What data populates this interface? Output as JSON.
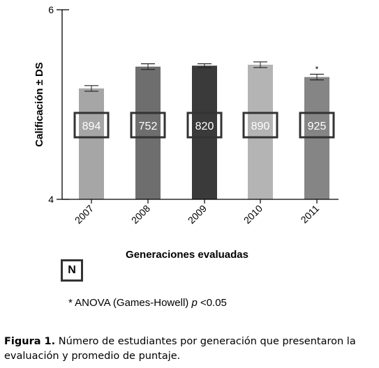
{
  "chart_data": {
    "type": "bar",
    "categories": [
      "2007",
      "2008",
      "2009",
      "2010",
      "2011"
    ],
    "values": [
      5.17,
      5.4,
      5.41,
      5.42,
      5.29
    ],
    "errors": [
      0.03,
      0.03,
      0.02,
      0.03,
      0.03
    ],
    "counts": [
      "894",
      "752",
      "820",
      "890",
      "925"
    ],
    "significance_marks": [
      "",
      "",
      "",
      "",
      "*"
    ],
    "bar_colors": [
      "#a6a6a6",
      "#6e6e6e",
      "#3a3a3a",
      "#b4b4b4",
      "#858585"
    ],
    "ylabel": "Calificación ± DS",
    "xlabel": "Generaciones evaluadas",
    "ylim": [
      4,
      6
    ],
    "yticks": [
      "4",
      "6"
    ],
    "legend_label": "N",
    "footnote": {
      "prefix": "* ANOVA (Games-Howell) ",
      "italic": "p",
      "suffix": " <0.05"
    }
  },
  "caption": {
    "label": "Figura 1.",
    "text": " Número de estudiantes por generación que presentaron la evaluación y promedio de puntaje."
  }
}
